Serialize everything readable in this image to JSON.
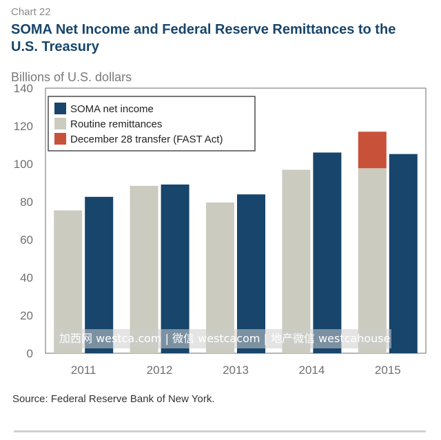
{
  "header": {
    "chart_number": "Chart 22",
    "title": "SOMA Net Income and Federal Reserve Remittances to the U.S. Treasury"
  },
  "chart_data": {
    "type": "bar",
    "title": "SOMA Net Income and Federal Reserve Remittances to the U.S. Treasury",
    "ylabel": "Billions of U.S. dollars",
    "xlabel": "",
    "categories": [
      "2011",
      "2012",
      "2013",
      "2014",
      "2015"
    ],
    "ylim": [
      0,
      140
    ],
    "yticks": [
      0,
      20,
      40,
      60,
      80,
      100,
      120,
      140
    ],
    "grid": false,
    "legend_position": "top-left",
    "series": [
      {
        "name": "Routine remittances",
        "color": "#cbcbbf",
        "values": [
          75.4,
          88.4,
          79.6,
          96.9,
          97.7
        ],
        "stack": "remittances"
      },
      {
        "name": "December 28 transfer (FAST Act)",
        "color": "#c8513a",
        "values": [
          0,
          0,
          0,
          0,
          19.3
        ],
        "stack": "remittances"
      },
      {
        "name": "SOMA net income",
        "color": "#17456b",
        "values": [
          82.6,
          89.1,
          83.9,
          106.0,
          105.2
        ],
        "stack": "income"
      }
    ],
    "legend_order": [
      "SOMA net income",
      "Routine remittances",
      "December 28 transfer (FAST Act)"
    ]
  },
  "source": "Source: Federal Reserve Bank of New York.",
  "watermark": "加西网 westca.com | 微信 westcacom | 地产微信 westcahouse",
  "colors": {
    "title": "#17456b",
    "soma_net_income": "#17456b",
    "routine_remittances": "#cbcbbf",
    "fast_act_transfer": "#c8513a"
  }
}
